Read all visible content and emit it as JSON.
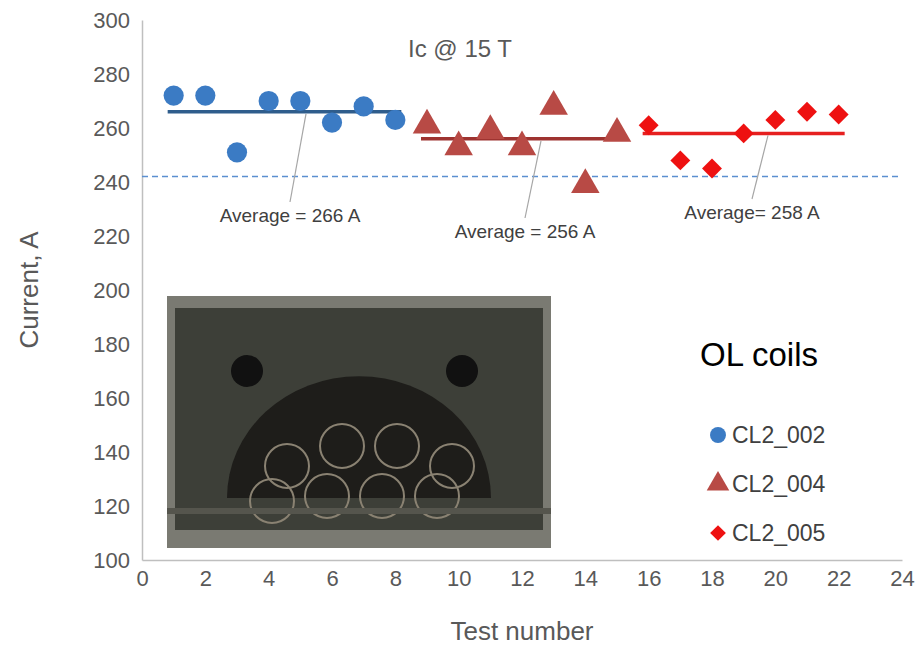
{
  "chart_data": {
    "type": "scatter",
    "title": "Ic @ 15 T",
    "x_label": "Test number",
    "y_label": "Current, A",
    "annotations": [
      "OL coils"
    ],
    "xlim": [
      0,
      24
    ],
    "xticks": [
      0,
      2,
      4,
      6,
      8,
      10,
      12,
      14,
      16,
      18,
      20,
      22,
      24
    ],
    "ylim": [
      100,
      300
    ],
    "yticks": [
      100,
      120,
      140,
      160,
      180,
      200,
      220,
      240,
      260,
      280,
      300
    ],
    "grid": false,
    "legend": "bottom-right",
    "reference_line": {
      "value": 242,
      "color": "#5b8fd0",
      "line_style": "dashed"
    },
    "series": [
      {
        "name": "CL2_002",
        "color": "#3b7bc4",
        "marker": "circle",
        "x": [
          1,
          2,
          3,
          4,
          5,
          6,
          7,
          8
        ],
        "values": [
          272,
          272,
          251,
          270,
          270,
          262,
          268,
          263
        ],
        "average": {
          "value": 266,
          "x": [
            1,
            8
          ],
          "label": "Average = 266 A",
          "color": "#2f5d8c"
        }
      },
      {
        "name": "CL2_004",
        "color": "#b84a45",
        "marker": "triangle",
        "x": [
          9,
          10,
          11,
          12,
          13,
          14,
          15
        ],
        "values": [
          261,
          253,
          259,
          253,
          268,
          239,
          258
        ],
        "average": {
          "value": 256,
          "x": [
            9,
            15
          ],
          "label": "Average = 256 A",
          "color": "#9e3330"
        }
      },
      {
        "name": "CL2_005",
        "color": "#ee1111",
        "marker": "diamond",
        "x": [
          16,
          17,
          18,
          19,
          20,
          21,
          22
        ],
        "values": [
          261,
          248,
          245,
          258,
          263,
          266,
          265
        ],
        "average": {
          "value": 258,
          "x": [
            16,
            22
          ],
          "label": "Average= 258 A",
          "color": "#e62020"
        }
      }
    ]
  }
}
